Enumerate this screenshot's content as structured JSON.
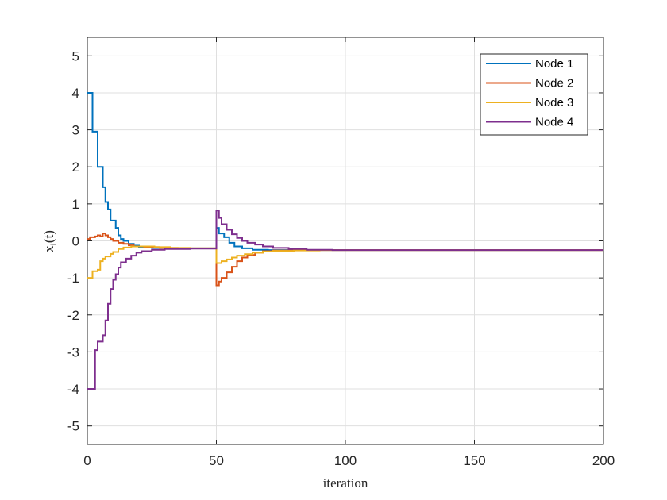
{
  "chart_data": {
    "type": "line",
    "title": "",
    "xlabel": "iteration",
    "ylabel_main": "x",
    "ylabel_sub": "i",
    "ylabel_suffix": "(t)",
    "xlim": [
      0,
      200
    ],
    "ylim": [
      -5.5,
      5.5
    ],
    "xticks": [
      0,
      50,
      100,
      150,
      200
    ],
    "yticks": [
      5,
      4,
      3,
      2,
      1,
      0,
      -1,
      -2,
      -3,
      -4,
      -5
    ],
    "grid": true,
    "legend_position": "top-right",
    "step": true,
    "series": [
      {
        "name": "Node 1",
        "color": "#0072BD",
        "points": [
          [
            0,
            4
          ],
          [
            2,
            2.95
          ],
          [
            3,
            2.95
          ],
          [
            4,
            2
          ],
          [
            6,
            1.45
          ],
          [
            7,
            1.05
          ],
          [
            8,
            0.85
          ],
          [
            9,
            0.55
          ],
          [
            11,
            0.35
          ],
          [
            12,
            0.15
          ],
          [
            13,
            0.05
          ],
          [
            14,
            0.0
          ],
          [
            16,
            -0.08
          ],
          [
            18,
            -0.13
          ],
          [
            20,
            -0.16
          ],
          [
            25,
            -0.19
          ],
          [
            30,
            -0.2
          ],
          [
            40,
            -0.2
          ],
          [
            50,
            -0.19
          ],
          [
            50,
            0.35
          ],
          [
            51,
            0.2
          ],
          [
            53,
            0.1
          ],
          [
            55,
            -0.05
          ],
          [
            57,
            -0.15
          ],
          [
            60,
            -0.2
          ],
          [
            64,
            -0.24
          ],
          [
            70,
            -0.25
          ],
          [
            80,
            -0.25
          ],
          [
            200,
            -0.25
          ]
        ]
      },
      {
        "name": "Node 2",
        "color": "#D95319",
        "points": [
          [
            0,
            0.05
          ],
          [
            1,
            0.1
          ],
          [
            3,
            0.12
          ],
          [
            4,
            0.15
          ],
          [
            5,
            0.12
          ],
          [
            6,
            0.2
          ],
          [
            7,
            0.15
          ],
          [
            8,
            0.1
          ],
          [
            9,
            0.05
          ],
          [
            10,
            0.0
          ],
          [
            12,
            -0.05
          ],
          [
            14,
            -0.08
          ],
          [
            16,
            -0.12
          ],
          [
            18,
            -0.15
          ],
          [
            22,
            -0.17
          ],
          [
            28,
            -0.19
          ],
          [
            35,
            -0.2
          ],
          [
            50,
            -0.2
          ],
          [
            50,
            -1.2
          ],
          [
            51,
            -1.1
          ],
          [
            52,
            -1.0
          ],
          [
            54,
            -0.85
          ],
          [
            56,
            -0.7
          ],
          [
            58,
            -0.55
          ],
          [
            60,
            -0.45
          ],
          [
            62,
            -0.38
          ],
          [
            65,
            -0.32
          ],
          [
            68,
            -0.28
          ],
          [
            72,
            -0.26
          ],
          [
            80,
            -0.25
          ],
          [
            200,
            -0.25
          ]
        ]
      },
      {
        "name": "Node 3",
        "color": "#EDB120",
        "points": [
          [
            0,
            -1.0
          ],
          [
            2,
            -0.82
          ],
          [
            4,
            -0.78
          ],
          [
            5,
            -0.55
          ],
          [
            6,
            -0.48
          ],
          [
            7,
            -0.42
          ],
          [
            9,
            -0.35
          ],
          [
            10,
            -0.3
          ],
          [
            12,
            -0.22
          ],
          [
            14,
            -0.18
          ],
          [
            17,
            -0.15
          ],
          [
            21,
            -0.15
          ],
          [
            26,
            -0.17
          ],
          [
            32,
            -0.19
          ],
          [
            40,
            -0.2
          ],
          [
            50,
            -0.2
          ],
          [
            50,
            -0.6
          ],
          [
            52,
            -0.55
          ],
          [
            54,
            -0.5
          ],
          [
            56,
            -0.45
          ],
          [
            58,
            -0.4
          ],
          [
            61,
            -0.36
          ],
          [
            64,
            -0.32
          ],
          [
            68,
            -0.29
          ],
          [
            72,
            -0.27
          ],
          [
            80,
            -0.26
          ],
          [
            90,
            -0.25
          ],
          [
            200,
            -0.25
          ]
        ]
      },
      {
        "name": "Node 4",
        "color": "#7E2F8E",
        "points": [
          [
            0,
            -4.0
          ],
          [
            3,
            -2.95
          ],
          [
            4,
            -2.72
          ],
          [
            6,
            -2.55
          ],
          [
            7,
            -2.15
          ],
          [
            8,
            -1.7
          ],
          [
            9,
            -1.3
          ],
          [
            10,
            -1.05
          ],
          [
            11,
            -0.9
          ],
          [
            12,
            -0.72
          ],
          [
            13,
            -0.58
          ],
          [
            15,
            -0.48
          ],
          [
            17,
            -0.4
          ],
          [
            19,
            -0.32
          ],
          [
            21,
            -0.28
          ],
          [
            25,
            -0.24
          ],
          [
            30,
            -0.22
          ],
          [
            40,
            -0.21
          ],
          [
            50,
            -0.2
          ],
          [
            50,
            0.82
          ],
          [
            51,
            0.62
          ],
          [
            52,
            0.45
          ],
          [
            54,
            0.3
          ],
          [
            56,
            0.18
          ],
          [
            58,
            0.08
          ],
          [
            60,
            0.0
          ],
          [
            62,
            -0.05
          ],
          [
            65,
            -0.1
          ],
          [
            68,
            -0.15
          ],
          [
            72,
            -0.19
          ],
          [
            78,
            -0.22
          ],
          [
            85,
            -0.24
          ],
          [
            95,
            -0.25
          ],
          [
            200,
            -0.25
          ]
        ]
      }
    ]
  }
}
